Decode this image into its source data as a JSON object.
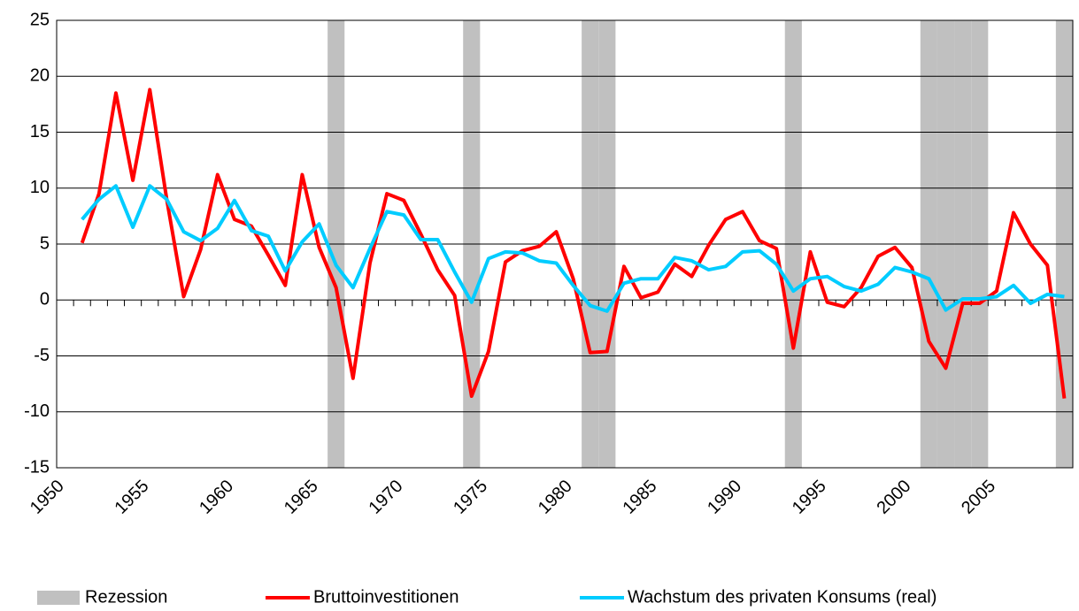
{
  "chart_data": {
    "type": "line",
    "categories": [
      "1950",
      null,
      null,
      null,
      null,
      "1955",
      null,
      null,
      null,
      null,
      "1960",
      null,
      null,
      null,
      null,
      "1965",
      null,
      null,
      null,
      null,
      "1970",
      null,
      null,
      null,
      null,
      "1975",
      null,
      null,
      null,
      null,
      "1980",
      null,
      null,
      null,
      null,
      "1985",
      null,
      null,
      null,
      null,
      "1990",
      null,
      null,
      null,
      null,
      "1995",
      null,
      null,
      null,
      null,
      "2000",
      null,
      null,
      null,
      null,
      "2005",
      null,
      null,
      null,
      null
    ],
    "ylim": [
      -15,
      25
    ],
    "yticks": [
      -15,
      -10,
      -5,
      0,
      5,
      10,
      15,
      20,
      25
    ],
    "grid": true,
    "legend": "bottom",
    "series": [
      {
        "name": "Rezession",
        "kind": "band",
        "color": "#c0c0c0",
        "values": [
          0,
          0,
          0,
          0,
          0,
          0,
          0,
          0,
          0,
          0,
          0,
          0,
          0,
          0,
          0,
          0,
          1,
          0,
          0,
          0,
          0,
          0,
          0,
          0,
          1,
          0,
          0,
          0,
          0,
          0,
          0,
          1,
          1,
          0,
          0,
          0,
          0,
          0,
          0,
          0,
          0,
          0,
          0,
          1,
          0,
          0,
          0,
          0,
          0,
          0,
          0,
          1,
          1,
          1,
          1,
          0,
          0,
          0,
          0,
          1
        ]
      },
      {
        "name": "Bruttoinvestitionen",
        "color": "#ff0000",
        "values": [
          null,
          5.1,
          9.5,
          18.5,
          10.7,
          18.8,
          9,
          0.3,
          4.5,
          11.2,
          7.2,
          6.6,
          4,
          1.3,
          11.2,
          4.7,
          1.1,
          -7,
          3.3,
          9.5,
          8.9,
          5.9,
          2.7,
          0.4,
          -8.6,
          -4.6,
          3.4,
          4.4,
          4.8,
          6.1,
          1.9,
          -4.7,
          -4.6,
          3.0,
          0.2,
          0.7,
          3.2,
          2.1,
          4.9,
          7.2,
          7.9,
          5.3,
          4.6,
          -4.3,
          4.3,
          -0.2,
          -0.6,
          1.1,
          3.9,
          4.7,
          2.9,
          -3.7,
          -6.1,
          -0.3,
          -0.3,
          0.8,
          7.8,
          5,
          3.1,
          -8.8
        ]
      },
      {
        "name": "Wachstum des privaten Konsums (real)",
        "color": "#00ccff",
        "values": [
          null,
          7.2,
          9.0,
          10.2,
          6.5,
          10.2,
          9.0,
          6.1,
          5.3,
          6.4,
          8.9,
          6.2,
          5.7,
          2.6,
          5.2,
          6.8,
          3.1,
          1.1,
          4.6,
          7.9,
          7.6,
          5.4,
          5.4,
          2.5,
          -0.2,
          3.7,
          4.3,
          4.2,
          3.5,
          3.3,
          1.3,
          -0.5,
          -1.0,
          1.5,
          1.9,
          1.9,
          3.8,
          3.5,
          2.7,
          3.0,
          4.3,
          4.4,
          3.2,
          0.8,
          1.9,
          2.1,
          1.2,
          0.8,
          1.4,
          2.9,
          2.5,
          1.9,
          -0.9,
          0.1,
          0.1,
          0.3,
          1.3,
          -0.3,
          0.5,
          0.3
        ]
      }
    ]
  }
}
